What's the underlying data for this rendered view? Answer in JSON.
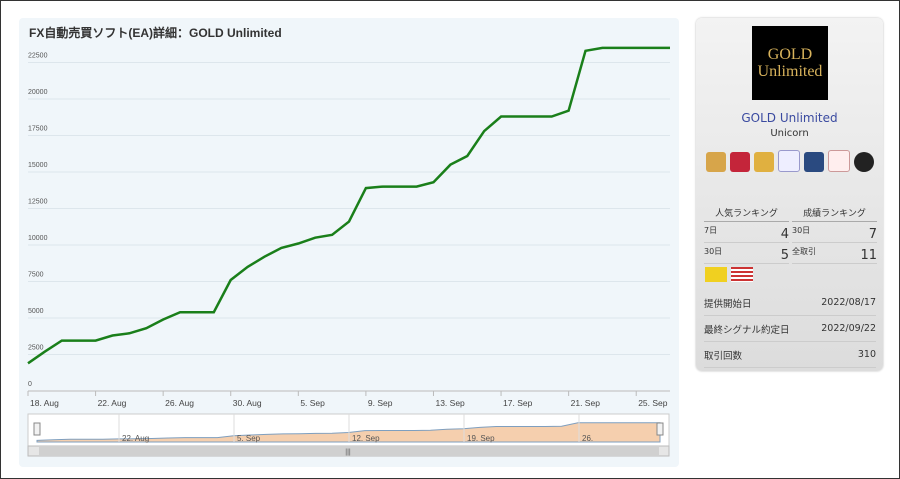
{
  "chart_data": {
    "type": "line",
    "title": "FX自動売買ソフト(EA)詳細：GOLD Unlimited",
    "categories": [
      "18. Aug",
      null,
      null,
      null,
      "22. Aug",
      null,
      null,
      null,
      "26. Aug",
      null,
      null,
      null,
      "30. Aug",
      null,
      null,
      null,
      "5. Sep",
      null,
      null,
      null,
      "9. Sep",
      null,
      null,
      null,
      "13. Sep",
      null,
      null,
      null,
      "17. Sep",
      null,
      null,
      null,
      "21. Sep",
      null,
      null,
      null,
      "25. Sep",
      null,
      null
    ],
    "values": [
      1900,
      2700,
      3450,
      3450,
      3450,
      3800,
      3950,
      4300,
      4900,
      5400,
      5400,
      5400,
      7600,
      8500,
      9200,
      9800,
      10100,
      10500,
      10700,
      11600,
      13900,
      14000,
      14000,
      14000,
      14300,
      15500,
      16100,
      17800,
      18800,
      18800,
      18800,
      18800,
      19200,
      23300,
      23500,
      23500,
      23500,
      23500,
      23500
    ],
    "color": "#1a7f1a",
    "ylim": [
      0,
      23700
    ],
    "yticks": [
      0,
      2500,
      5000,
      7500,
      10000,
      12500,
      15000,
      17500,
      20000,
      22500
    ],
    "grid": true,
    "navigator_labels": [
      "22. Aug",
      "5. Sep",
      "12. Sep",
      "19. Sep",
      "26."
    ]
  },
  "panel": {
    "logo": [
      "GOLD",
      "Unlimited"
    ],
    "name": "GOLD Unlimited",
    "author": "Unicorn",
    "rankings": [
      {
        "title": "人気ランキング",
        "rows": [
          [
            "7日",
            4
          ],
          [
            "30日",
            5
          ]
        ]
      },
      {
        "title": "成績ランキング",
        "rows": [
          [
            "30日",
            7
          ],
          [
            "全取引",
            11
          ]
        ]
      }
    ],
    "info": [
      [
        "提供開始日",
        "2022/08/17"
      ],
      [
        "最終シグナル約定日",
        "2022/09/22"
      ],
      [
        "取引回数",
        310
      ]
    ]
  }
}
